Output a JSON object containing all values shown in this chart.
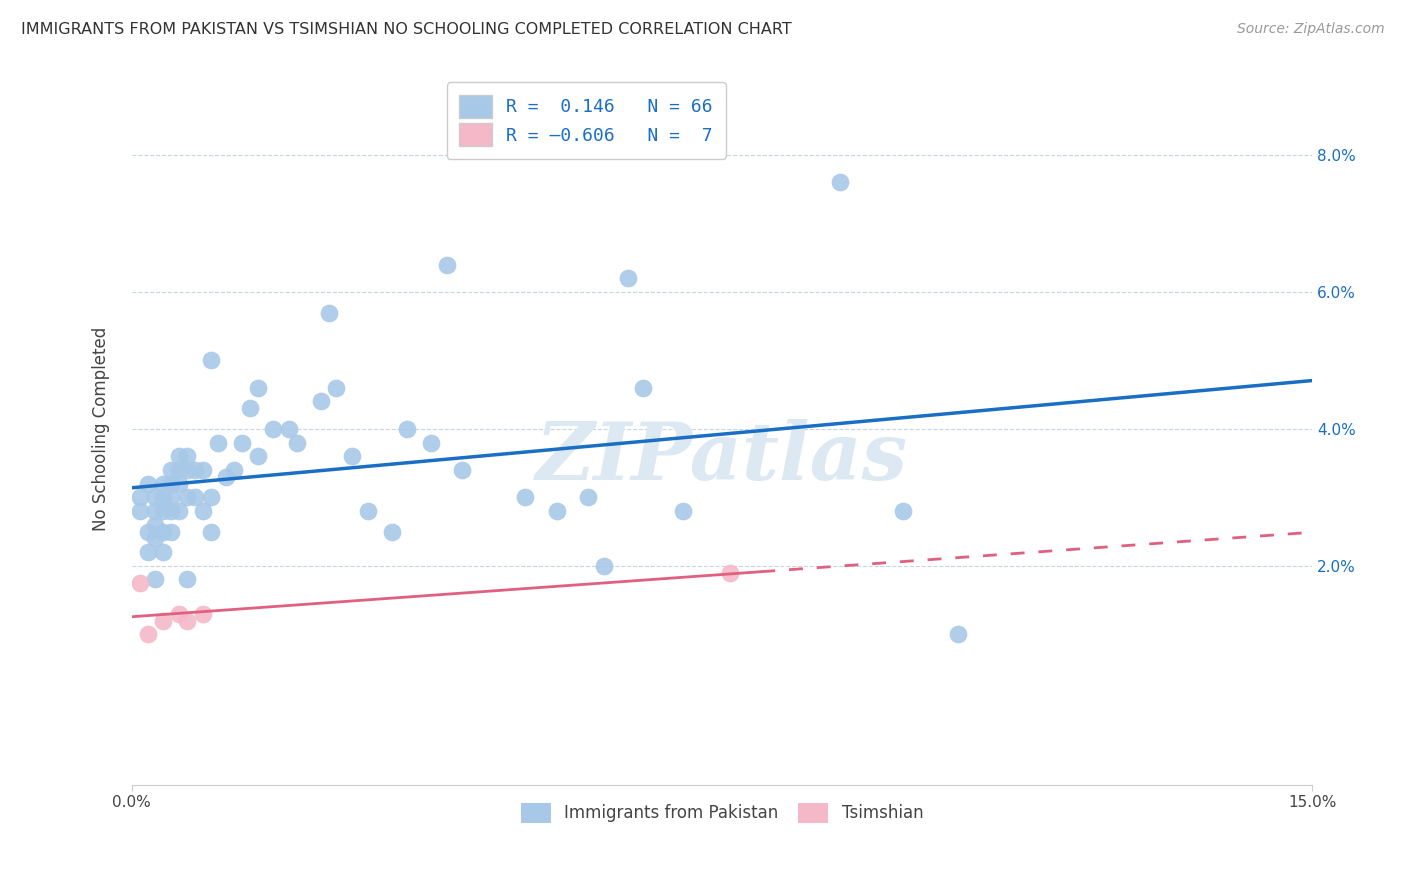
{
  "title": "IMMIGRANTS FROM PAKISTAN VS TSIMSHIAN NO SCHOOLING COMPLETED CORRELATION CHART",
  "source": "Source: ZipAtlas.com",
  "ylabel": "No Schooling Completed",
  "ylabel_right_ticks": [
    "2.0%",
    "4.0%",
    "6.0%",
    "8.0%"
  ],
  "ylabel_right_vals": [
    0.02,
    0.04,
    0.06,
    0.08
  ],
  "x_min": 0.0,
  "x_max": 0.15,
  "y_min": -0.012,
  "y_max": 0.092,
  "blue_color": "#a8c8e8",
  "pink_color": "#f5b8c8",
  "line_blue": "#1a6fc4",
  "line_pink": "#e06080",
  "bg_color": "#ffffff",
  "grid_color": "#c8d4e4",
  "pakistan_x": [
    0.001,
    0.001,
    0.002,
    0.002,
    0.002,
    0.003,
    0.003,
    0.003,
    0.003,
    0.003,
    0.004,
    0.004,
    0.004,
    0.004,
    0.004,
    0.005,
    0.005,
    0.005,
    0.005,
    0.005,
    0.005,
    0.006,
    0.006,
    0.006,
    0.006,
    0.007,
    0.007,
    0.007,
    0.007,
    0.008,
    0.008,
    0.009,
    0.009,
    0.01,
    0.01,
    0.01,
    0.011,
    0.012,
    0.013,
    0.014,
    0.015,
    0.016,
    0.016,
    0.018,
    0.02,
    0.021,
    0.024,
    0.025,
    0.026,
    0.028,
    0.03,
    0.033,
    0.035,
    0.038,
    0.04,
    0.042,
    0.05,
    0.054,
    0.058,
    0.06,
    0.063,
    0.065,
    0.07,
    0.09,
    0.098,
    0.105
  ],
  "pakistan_y": [
    0.03,
    0.028,
    0.032,
    0.025,
    0.022,
    0.03,
    0.028,
    0.026,
    0.024,
    0.018,
    0.032,
    0.03,
    0.028,
    0.025,
    0.022,
    0.034,
    0.032,
    0.03,
    0.032,
    0.028,
    0.025,
    0.036,
    0.034,
    0.032,
    0.028,
    0.036,
    0.034,
    0.03,
    0.018,
    0.034,
    0.03,
    0.034,
    0.028,
    0.05,
    0.03,
    0.025,
    0.038,
    0.033,
    0.034,
    0.038,
    0.043,
    0.046,
    0.036,
    0.04,
    0.04,
    0.038,
    0.044,
    0.057,
    0.046,
    0.036,
    0.028,
    0.025,
    0.04,
    0.038,
    0.064,
    0.034,
    0.03,
    0.028,
    0.03,
    0.02,
    0.062,
    0.046,
    0.028,
    0.076,
    0.028,
    0.01
  ],
  "tsimshian_x": [
    0.001,
    0.002,
    0.004,
    0.006,
    0.007,
    0.009,
    0.076
  ],
  "tsimshian_y": [
    0.0175,
    0.01,
    0.012,
    0.013,
    0.012,
    0.013,
    0.019
  ],
  "watermark_text": "ZIPatlas",
  "watermark_color": "#dce8f2"
}
